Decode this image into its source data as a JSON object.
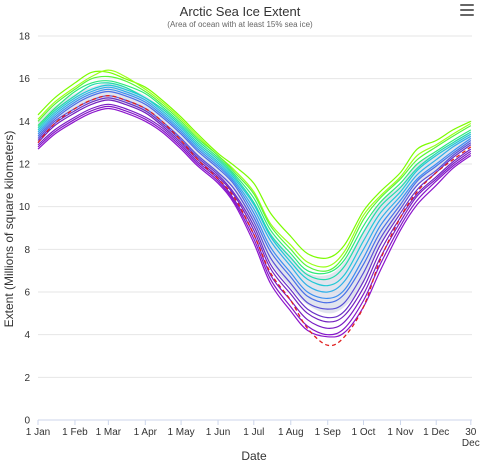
{
  "chart_data": {
    "type": "line",
    "title": "Arctic Sea Ice Extent",
    "subtitle": "(Area of ocean with at least 15% sea ice)",
    "xlabel": "Date",
    "ylabel": "Extent (Millions of square kilometers)",
    "ylim": [
      0,
      18
    ],
    "xlim": [
      1,
      365
    ],
    "yticks": [
      "0",
      "2",
      "4",
      "6",
      "8",
      "10",
      "12",
      "14",
      "16",
      "18"
    ],
    "xticks": [
      {
        "day": 1,
        "label": "1 Jan"
      },
      {
        "day": 32,
        "label": "1 Feb"
      },
      {
        "day": 60,
        "label": "1 Mar"
      },
      {
        "day": 91,
        "label": "1 Apr"
      },
      {
        "day": 121,
        "label": "1 May"
      },
      {
        "day": 152,
        "label": "1 Jun"
      },
      {
        "day": 182,
        "label": "1 Jul"
      },
      {
        "day": 213,
        "label": "1 Aug"
      },
      {
        "day": 244,
        "label": "1 Sep"
      },
      {
        "day": 274,
        "label": "1 Oct"
      },
      {
        "day": 305,
        "label": "1 Nov"
      },
      {
        "day": 335,
        "label": "1 Dec"
      },
      {
        "day": 364,
        "label": "30 Dec"
      }
    ],
    "grid": true,
    "legend": "none",
    "band": {
      "x": [
        1,
        15,
        32,
        46,
        60,
        74,
        91,
        105,
        121,
        135,
        152,
        166,
        182,
        196,
        213,
        227,
        244,
        258,
        274,
        288,
        305,
        319,
        335,
        349,
        364
      ],
      "upper": [
        14.0,
        14.7,
        15.3,
        15.6,
        15.8,
        15.6,
        15.2,
        14.6,
        13.8,
        13.0,
        12.3,
        11.5,
        10.2,
        8.8,
        7.7,
        6.9,
        6.8,
        7.4,
        8.9,
        10.2,
        11.0,
        12.0,
        12.5,
        13.0,
        13.5
      ],
      "lower": [
        13.3,
        14.0,
        14.6,
        14.9,
        15.0,
        14.8,
        14.4,
        13.8,
        13.0,
        12.2,
        11.5,
        10.7,
        9.0,
        7.4,
        6.2,
        5.4,
        5.0,
        5.3,
        6.4,
        8.2,
        9.8,
        11.0,
        11.7,
        12.3,
        12.9
      ]
    },
    "band_color": "#c9cde0",
    "series": [
      {
        "color": "#7cfc00",
        "values": [
          14.3,
          15.1,
          15.8,
          16.3,
          16.3,
          16.0,
          15.6,
          15.0,
          14.2,
          13.4,
          12.5,
          11.9,
          11.1,
          9.7,
          8.6,
          7.8,
          7.6,
          8.2,
          9.8,
          10.7,
          11.6,
          12.7,
          13.1,
          13.6,
          14.0
        ]
      },
      {
        "color": "#9aff1a",
        "values": [
          14.1,
          14.9,
          15.6,
          16.1,
          16.4,
          16.1,
          15.5,
          14.9,
          14.1,
          13.3,
          12.4,
          11.7,
          10.7,
          9.2,
          8.2,
          7.4,
          7.2,
          7.9,
          9.6,
          10.5,
          11.4,
          12.4,
          12.9,
          13.4,
          13.9
        ]
      },
      {
        "color": "#57f53b",
        "values": [
          14.0,
          14.8,
          15.5,
          16.0,
          16.1,
          15.9,
          15.4,
          14.8,
          14.0,
          13.2,
          12.4,
          11.6,
          10.6,
          9.1,
          8.0,
          7.2,
          7.0,
          7.7,
          9.4,
          10.4,
          11.3,
          12.2,
          12.8,
          13.3,
          13.8
        ]
      },
      {
        "color": "#2ee87a",
        "values": [
          13.8,
          14.6,
          15.4,
          15.8,
          15.9,
          15.7,
          15.3,
          14.7,
          13.9,
          13.1,
          12.3,
          11.5,
          10.4,
          8.9,
          7.8,
          7.0,
          6.9,
          7.5,
          9.1,
          10.2,
          11.1,
          12.0,
          12.6,
          13.1,
          13.6
        ]
      },
      {
        "color": "#1fdcaa",
        "values": [
          13.7,
          14.5,
          15.2,
          15.7,
          15.8,
          15.6,
          15.1,
          14.6,
          13.8,
          13.0,
          12.2,
          11.4,
          10.2,
          8.7,
          7.6,
          6.8,
          6.6,
          7.2,
          8.8,
          10.0,
          10.9,
          11.8,
          12.5,
          13.0,
          13.5
        ]
      },
      {
        "color": "#21c9d6",
        "values": [
          13.6,
          14.4,
          15.1,
          15.5,
          15.7,
          15.5,
          15.1,
          14.5,
          13.7,
          12.9,
          12.1,
          11.3,
          10.1,
          8.6,
          7.4,
          6.6,
          6.3,
          6.8,
          8.4,
          9.7,
          10.7,
          11.7,
          12.4,
          12.9,
          13.4
        ]
      },
      {
        "color": "#2fb0e8",
        "values": [
          13.5,
          14.3,
          15.0,
          15.4,
          15.6,
          15.4,
          15.0,
          14.4,
          13.6,
          12.8,
          12.0,
          11.2,
          9.9,
          8.4,
          7.2,
          6.3,
          6.0,
          6.5,
          8.0,
          9.4,
          10.5,
          11.5,
          12.2,
          12.8,
          13.3
        ]
      },
      {
        "color": "#3b8ef0",
        "values": [
          13.4,
          14.2,
          14.9,
          15.3,
          15.5,
          15.3,
          14.9,
          14.3,
          13.5,
          12.7,
          11.9,
          11.1,
          9.7,
          8.1,
          6.9,
          6.0,
          5.7,
          6.1,
          7.6,
          9.1,
          10.3,
          11.3,
          12.0,
          12.6,
          13.2
        ]
      },
      {
        "color": "#4a6fe8",
        "values": [
          13.3,
          14.1,
          14.8,
          15.2,
          15.4,
          15.2,
          14.8,
          14.2,
          13.4,
          12.6,
          11.8,
          11.0,
          9.5,
          7.9,
          6.7,
          5.8,
          5.5,
          5.9,
          7.3,
          8.8,
          10.1,
          11.2,
          11.9,
          12.5,
          13.1
        ]
      },
      {
        "color": "#5a4fd8",
        "values": [
          13.2,
          14.0,
          14.6,
          15.0,
          15.2,
          15.0,
          14.6,
          14.0,
          13.2,
          12.4,
          11.6,
          10.8,
          9.3,
          7.6,
          6.4,
          5.5,
          5.2,
          5.5,
          6.9,
          8.5,
          9.9,
          11.0,
          11.7,
          12.4,
          13.0
        ]
      },
      {
        "color": "#6a32c8",
        "values": [
          13.1,
          13.9,
          14.5,
          14.9,
          15.1,
          14.9,
          14.5,
          13.9,
          13.1,
          12.3,
          11.5,
          10.6,
          9.1,
          7.3,
          6.1,
          5.2,
          4.8,
          5.1,
          6.5,
          8.2,
          9.7,
          10.8,
          11.6,
          12.3,
          12.9
        ]
      },
      {
        "color": "#7322c0",
        "values": [
          13.0,
          13.8,
          14.4,
          14.8,
          15.0,
          14.8,
          14.4,
          13.8,
          13.0,
          12.2,
          11.4,
          10.5,
          8.9,
          7.1,
          5.9,
          5.0,
          4.6,
          4.9,
          6.2,
          7.9,
          9.5,
          10.6,
          11.4,
          12.1,
          12.7
        ]
      },
      {
        "color": "#7a1cc4",
        "values": [
          12.9,
          13.6,
          14.2,
          14.6,
          14.8,
          14.6,
          14.2,
          13.7,
          12.9,
          12.1,
          11.3,
          10.3,
          8.7,
          6.8,
          5.6,
          4.7,
          4.3,
          4.6,
          5.9,
          7.6,
          9.3,
          10.5,
          11.3,
          12.0,
          12.6
        ]
      },
      {
        "color": "#8416c8",
        "values": [
          12.8,
          13.5,
          14.1,
          14.5,
          14.7,
          14.5,
          14.1,
          13.6,
          12.8,
          12.0,
          11.2,
          10.2,
          8.5,
          6.6,
          5.3,
          4.4,
          4.0,
          4.3,
          5.6,
          7.3,
          9.1,
          10.3,
          11.2,
          11.9,
          12.5
        ]
      },
      {
        "color": "#8c14cc",
        "values": [
          12.7,
          13.4,
          14.0,
          14.4,
          14.6,
          14.4,
          14.0,
          13.5,
          12.7,
          11.9,
          11.1,
          10.1,
          8.3,
          6.4,
          5.1,
          4.2,
          3.9,
          4.1,
          5.3,
          7.0,
          8.9,
          10.1,
          11.0,
          11.8,
          12.4
        ]
      },
      {
        "color": "#e02020",
        "dashed": true,
        "values": [
          13.0,
          13.9,
          14.6,
          15.0,
          15.2,
          15.0,
          14.6,
          14.0,
          13.1,
          12.2,
          11.3,
          10.4,
          8.7,
          6.9,
          5.6,
          4.3,
          3.5,
          3.9,
          5.3,
          7.5,
          9.5,
          10.7,
          11.6,
          12.2,
          12.8
        ]
      }
    ]
  },
  "ui": {
    "menu_icon": "hamburger-menu-icon"
  }
}
